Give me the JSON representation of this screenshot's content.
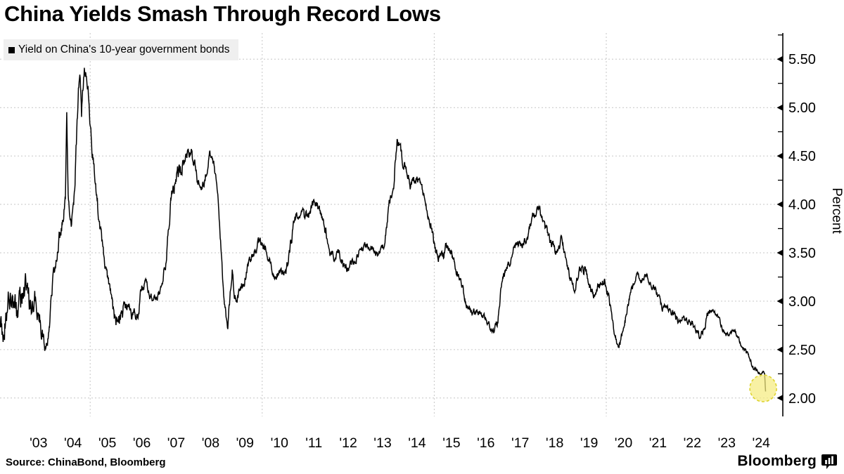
{
  "title": "China Yields Smash Through Record Lows",
  "legend": {
    "label": "Yield on China's 10-year government bonds",
    "swatch_color": "#000000"
  },
  "source": "Source: ChinaBond, Bloomberg",
  "brand": {
    "name": "Bloomberg"
  },
  "colors": {
    "line": "#000000",
    "grid": "#c6c6c6",
    "axis": "#000000",
    "text": "#000000",
    "legend_bg": "#efefef",
    "highlight_fill": "#f5ec7f",
    "highlight_border": "#ddd32e"
  },
  "chart_data": {
    "type": "line",
    "title": "China Yields Smash Through Record Lows",
    "series_name": "Yield on China's 10-year government bonds",
    "ylabel": "Percent",
    "x_range": [
      2002.38,
      2025.13
    ],
    "y_range": [
      1.81,
      5.77
    ],
    "grid": "dashed",
    "legend_position": "top-left",
    "y_ticks": [
      {
        "v": 2.0,
        "label": "2.00"
      },
      {
        "v": 2.5,
        "label": "2.50"
      },
      {
        "v": 3.0,
        "label": "3.00"
      },
      {
        "v": 3.5,
        "label": "3.50"
      },
      {
        "v": 4.0,
        "label": "4.00"
      },
      {
        "v": 4.5,
        "label": "4.50"
      },
      {
        "v": 5.0,
        "label": "5.00"
      },
      {
        "v": 5.5,
        "label": "5.50"
      }
    ],
    "y_minor_ticks": {
      "start": 2.25,
      "end": 5.75,
      "step": 0.25
    },
    "x_tick_start_t": 2003.5,
    "x_tick_step": 1,
    "x_tick_labels": [
      "'03",
      "'04",
      "'05",
      "'06",
      "'07",
      "'08",
      "'09",
      "'10",
      "'11",
      "'12",
      "'13",
      "'14",
      "'15",
      "'16",
      "'17",
      "'18",
      "'19",
      "'20",
      "'21",
      "'22",
      "'23",
      "'24"
    ],
    "grid_vertical_years": [
      2005,
      2010,
      2015,
      2020
    ],
    "highlight": {
      "t": 2024.56,
      "value": 2.1,
      "radius": 19,
      "meaning": "record low at end of series"
    },
    "noise_seed": 20240924,
    "points": [
      [
        2002.38,
        2.8,
        0.13
      ],
      [
        2002.5,
        2.72,
        0.13
      ],
      [
        2002.62,
        2.95,
        0.12
      ],
      [
        2002.75,
        3.05,
        0.12
      ],
      [
        2002.88,
        2.85,
        0.12
      ],
      [
        2003.0,
        3.0,
        0.12
      ],
      [
        2003.12,
        3.22,
        0.12
      ],
      [
        2003.25,
        2.92,
        0.12
      ],
      [
        2003.38,
        3.05,
        0.11
      ],
      [
        2003.5,
        2.85,
        0.1
      ],
      [
        2003.6,
        2.72,
        0.08
      ],
      [
        2003.72,
        2.48,
        0.05
      ],
      [
        2003.82,
        2.78,
        0.05
      ],
      [
        2003.92,
        3.22,
        0.06
      ],
      [
        2004.05,
        3.55,
        0.06
      ],
      [
        2004.18,
        3.8,
        0.07
      ],
      [
        2004.28,
        4.05,
        0.05
      ],
      [
        2004.32,
        4.95,
        0.03
      ],
      [
        2004.36,
        4.05,
        0.04
      ],
      [
        2004.45,
        3.78,
        0.05
      ],
      [
        2004.55,
        4.15,
        0.06
      ],
      [
        2004.65,
        5.1,
        0.08
      ],
      [
        2004.7,
        5.32,
        0.07
      ],
      [
        2004.75,
        4.95,
        0.07
      ],
      [
        2004.83,
        5.4,
        0.05
      ],
      [
        2004.9,
        5.3,
        0.08
      ],
      [
        2004.97,
        5.05,
        0.08
      ],
      [
        2005.08,
        4.48,
        0.07
      ],
      [
        2005.18,
        4.1,
        0.05
      ],
      [
        2005.3,
        3.72,
        0.05
      ],
      [
        2005.42,
        3.42,
        0.05
      ],
      [
        2005.55,
        3.12,
        0.06
      ],
      [
        2005.68,
        2.9,
        0.07
      ],
      [
        2005.8,
        2.78,
        0.07
      ],
      [
        2005.92,
        2.88,
        0.08
      ],
      [
        2006.05,
        2.92,
        0.07
      ],
      [
        2006.2,
        2.88,
        0.06
      ],
      [
        2006.35,
        2.82,
        0.06
      ],
      [
        2006.5,
        3.12,
        0.05
      ],
      [
        2006.62,
        3.22,
        0.04
      ],
      [
        2006.75,
        3.02,
        0.04
      ],
      [
        2006.9,
        3.02,
        0.03
      ],
      [
        2007.05,
        3.12,
        0.04
      ],
      [
        2007.2,
        3.42,
        0.05
      ],
      [
        2007.35,
        4.05,
        0.06
      ],
      [
        2007.5,
        4.32,
        0.07
      ],
      [
        2007.65,
        4.38,
        0.07
      ],
      [
        2007.8,
        4.55,
        0.06
      ],
      [
        2007.95,
        4.5,
        0.06
      ],
      [
        2008.1,
        4.28,
        0.06
      ],
      [
        2008.22,
        4.12,
        0.05
      ],
      [
        2008.35,
        4.32,
        0.05
      ],
      [
        2008.48,
        4.52,
        0.04
      ],
      [
        2008.6,
        4.4,
        0.04
      ],
      [
        2008.7,
        4.15,
        0.04
      ],
      [
        2008.8,
        3.6,
        0.05
      ],
      [
        2008.9,
        3.0,
        0.05
      ],
      [
        2009.0,
        2.7,
        0.04
      ],
      [
        2009.08,
        3.1,
        0.06
      ],
      [
        2009.13,
        3.32,
        0.04
      ],
      [
        2009.2,
        3.02,
        0.05
      ],
      [
        2009.33,
        3.08,
        0.04
      ],
      [
        2009.48,
        3.22,
        0.04
      ],
      [
        2009.62,
        3.42,
        0.04
      ],
      [
        2009.78,
        3.52,
        0.04
      ],
      [
        2009.93,
        3.62,
        0.04
      ],
      [
        2010.08,
        3.55,
        0.04
      ],
      [
        2010.22,
        3.42,
        0.04
      ],
      [
        2010.38,
        3.25,
        0.04
      ],
      [
        2010.52,
        3.28,
        0.04
      ],
      [
        2010.68,
        3.32,
        0.04
      ],
      [
        2010.8,
        3.52,
        0.05
      ],
      [
        2010.93,
        3.82,
        0.05
      ],
      [
        2011.08,
        3.92,
        0.05
      ],
      [
        2011.22,
        3.85,
        0.05
      ],
      [
        2011.38,
        3.92,
        0.04
      ],
      [
        2011.52,
        4.02,
        0.04
      ],
      [
        2011.65,
        3.98,
        0.04
      ],
      [
        2011.8,
        3.82,
        0.05
      ],
      [
        2011.95,
        3.52,
        0.04
      ],
      [
        2012.08,
        3.45,
        0.04
      ],
      [
        2012.22,
        3.52,
        0.04
      ],
      [
        2012.35,
        3.38,
        0.04
      ],
      [
        2012.5,
        3.32,
        0.04
      ],
      [
        2012.65,
        3.38,
        0.04
      ],
      [
        2012.8,
        3.5,
        0.03
      ],
      [
        2012.95,
        3.57,
        0.03
      ],
      [
        2013.1,
        3.58,
        0.03
      ],
      [
        2013.25,
        3.52,
        0.03
      ],
      [
        2013.4,
        3.45,
        0.03
      ],
      [
        2013.55,
        3.62,
        0.04
      ],
      [
        2013.7,
        4.05,
        0.05
      ],
      [
        2013.82,
        4.22,
        0.05
      ],
      [
        2013.92,
        4.68,
        0.04
      ],
      [
        2014.02,
        4.52,
        0.06
      ],
      [
        2014.15,
        4.42,
        0.05
      ],
      [
        2014.3,
        4.18,
        0.05
      ],
      [
        2014.45,
        4.28,
        0.04
      ],
      [
        2014.6,
        4.22,
        0.04
      ],
      [
        2014.75,
        4.05,
        0.04
      ],
      [
        2014.9,
        3.78,
        0.05
      ],
      [
        2015.05,
        3.52,
        0.05
      ],
      [
        2015.2,
        3.42,
        0.05
      ],
      [
        2015.35,
        3.58,
        0.04
      ],
      [
        2015.5,
        3.48,
        0.04
      ],
      [
        2015.65,
        3.32,
        0.04
      ],
      [
        2015.8,
        3.18,
        0.04
      ],
      [
        2015.95,
        2.95,
        0.04
      ],
      [
        2016.1,
        2.88,
        0.03
      ],
      [
        2016.25,
        2.9,
        0.03
      ],
      [
        2016.4,
        2.88,
        0.03
      ],
      [
        2016.55,
        2.78,
        0.03
      ],
      [
        2016.72,
        2.68,
        0.02
      ],
      [
        2016.85,
        2.8,
        0.04
      ],
      [
        2016.97,
        3.18,
        0.05
      ],
      [
        2017.1,
        3.35,
        0.04
      ],
      [
        2017.25,
        3.45,
        0.04
      ],
      [
        2017.4,
        3.62,
        0.04
      ],
      [
        2017.55,
        3.58,
        0.04
      ],
      [
        2017.7,
        3.65,
        0.04
      ],
      [
        2017.85,
        3.9,
        0.05
      ],
      [
        2017.98,
        3.95,
        0.04
      ],
      [
        2018.12,
        3.88,
        0.04
      ],
      [
        2018.28,
        3.72,
        0.05
      ],
      [
        2018.42,
        3.58,
        0.04
      ],
      [
        2018.55,
        3.5,
        0.04
      ],
      [
        2018.68,
        3.62,
        0.04
      ],
      [
        2018.82,
        3.48,
        0.04
      ],
      [
        2018.95,
        3.25,
        0.04
      ],
      [
        2019.1,
        3.12,
        0.04
      ],
      [
        2019.25,
        3.35,
        0.04
      ],
      [
        2019.38,
        3.32,
        0.04
      ],
      [
        2019.52,
        3.12,
        0.04
      ],
      [
        2019.65,
        3.05,
        0.04
      ],
      [
        2019.8,
        3.18,
        0.04
      ],
      [
        2019.95,
        3.22,
        0.04
      ],
      [
        2020.08,
        3.05,
        0.04
      ],
      [
        2020.2,
        2.72,
        0.04
      ],
      [
        2020.33,
        2.52,
        0.03
      ],
      [
        2020.45,
        2.62,
        0.04
      ],
      [
        2020.58,
        2.88,
        0.04
      ],
      [
        2020.72,
        3.12,
        0.04
      ],
      [
        2020.88,
        3.3,
        0.03
      ],
      [
        2021.02,
        3.22,
        0.03
      ],
      [
        2021.18,
        3.25,
        0.02
      ],
      [
        2021.32,
        3.18,
        0.03
      ],
      [
        2021.48,
        3.08,
        0.03
      ],
      [
        2021.62,
        2.92,
        0.03
      ],
      [
        2021.78,
        2.95,
        0.03
      ],
      [
        2021.92,
        2.88,
        0.03
      ],
      [
        2022.08,
        2.8,
        0.03
      ],
      [
        2022.25,
        2.82,
        0.03
      ],
      [
        2022.4,
        2.78,
        0.03
      ],
      [
        2022.55,
        2.75,
        0.03
      ],
      [
        2022.7,
        2.65,
        0.03
      ],
      [
        2022.85,
        2.72,
        0.03
      ],
      [
        2022.97,
        2.9,
        0.03
      ],
      [
        2023.12,
        2.88,
        0.02
      ],
      [
        2023.27,
        2.82,
        0.02
      ],
      [
        2023.42,
        2.68,
        0.02
      ],
      [
        2023.57,
        2.65,
        0.02
      ],
      [
        2023.72,
        2.7,
        0.02
      ],
      [
        2023.87,
        2.58,
        0.02
      ],
      [
        2024.02,
        2.52,
        0.02
      ],
      [
        2024.15,
        2.42,
        0.02
      ],
      [
        2024.28,
        2.3,
        0.02
      ],
      [
        2024.4,
        2.28,
        0.02
      ],
      [
        2024.5,
        2.25,
        0.015
      ],
      [
        2024.56,
        2.28,
        0.01
      ],
      [
        2024.6,
        2.25,
        0.005
      ],
      [
        2024.63,
        2.07,
        0.003
      ]
    ]
  }
}
